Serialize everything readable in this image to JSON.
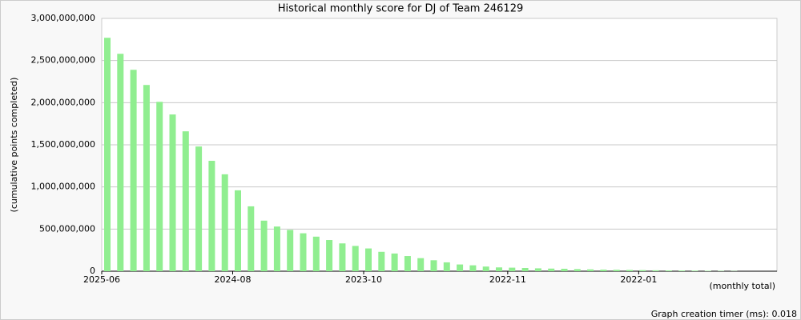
{
  "chart_data": {
    "type": "bar",
    "title": "Historical monthly score for DJ of Team 246129",
    "y_label": "(cumulative points completed)",
    "x_label": "(monthly total)",
    "footer": "Graph creation timer (ms): 0.018",
    "color": "#90ee90",
    "grid": true,
    "categories": [
      "2025-06",
      null,
      null,
      null,
      null,
      null,
      null,
      null,
      null,
      null,
      "2024-08",
      null,
      null,
      null,
      null,
      null,
      null,
      null,
      null,
      null,
      "2023-10",
      null,
      null,
      null,
      null,
      null,
      null,
      null,
      null,
      null,
      null,
      "2022-11",
      null,
      null,
      null,
      null,
      null,
      null,
      null,
      null,
      null,
      "2022-01",
      null,
      null,
      null,
      null,
      null,
      null,
      null
    ],
    "values": [
      2770000000,
      2580000000,
      2390000000,
      2210000000,
      2010000000,
      1860000000,
      1660000000,
      1480000000,
      1310000000,
      1150000000,
      960000000,
      770000000,
      600000000,
      530000000,
      490000000,
      450000000,
      410000000,
      370000000,
      330000000,
      300000000,
      270000000,
      230000000,
      210000000,
      180000000,
      155000000,
      130000000,
      105000000,
      80000000,
      70000000,
      55000000,
      45000000,
      42000000,
      38000000,
      34000000,
      31000000,
      29000000,
      25000000,
      22000000,
      19000000,
      17000000,
      15000000,
      13000000,
      11000000,
      9000000,
      8000000,
      7000000,
      5000000,
      4000000,
      3000000
    ],
    "ylim": [
      0,
      3000000000
    ],
    "yticks": [
      0,
      {
        "value": 500000000,
        "label": "500,000,000"
      },
      {
        "value": 1000000000,
        "label": "1,000,000,000"
      },
      {
        "value": 1500000000,
        "label": "1,500,000,000"
      },
      {
        "value": 2000000000,
        "label": "2,000,000,000"
      },
      {
        "value": 2500000000,
        "label": "2,500,000,000"
      },
      {
        "value": 3000000000,
        "label": "3,000,000,000"
      }
    ]
  }
}
